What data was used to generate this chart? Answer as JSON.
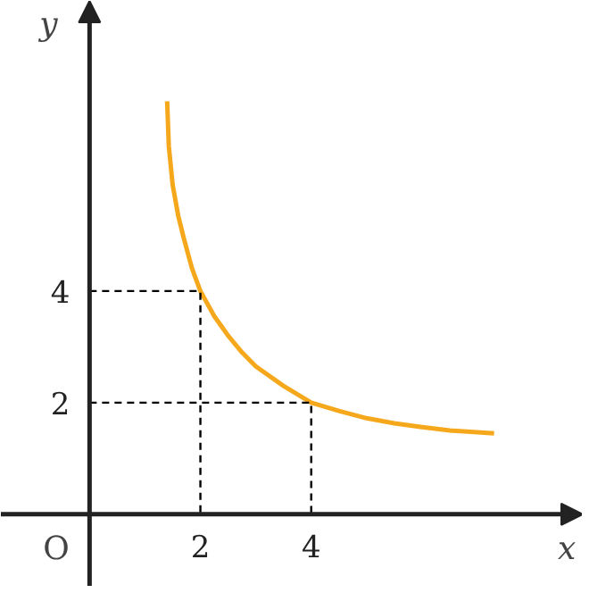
{
  "chart_data": {
    "type": "line",
    "xlabel": "x",
    "ylabel": "y",
    "annotations": [
      "O"
    ],
    "xlim": [
      -1.6,
      8.9
    ],
    "ylim": [
      -1.3,
      9.2
    ],
    "xticks": [
      2,
      4
    ],
    "yticks": [
      2,
      4
    ],
    "grid": false,
    "series": [
      {
        "color": "#f5a81c",
        "x": [
          1.4,
          1.43,
          1.5,
          1.6,
          1.7,
          1.85,
          2,
          2.25,
          2.5,
          2.75,
          3,
          3.5,
          4,
          4.5,
          5,
          5.5,
          6,
          6.5,
          7.3
        ],
        "values": [
          7.4,
          6.6,
          5.9,
          5.35,
          4.95,
          4.4,
          4,
          3.55,
          3.2,
          2.9,
          2.65,
          2.3,
          2,
          1.85,
          1.72,
          1.63,
          1.56,
          1.5,
          1.45
        ]
      },
      {
        "color": "#000000",
        "line_style": "dashed",
        "x": [
          0,
          2,
          2
        ],
        "values": [
          4,
          4,
          0
        ]
      },
      {
        "color": "#000000",
        "line_style": "dashed",
        "x": [
          0,
          4,
          4
        ],
        "values": [
          2,
          2,
          0
        ]
      }
    ]
  }
}
